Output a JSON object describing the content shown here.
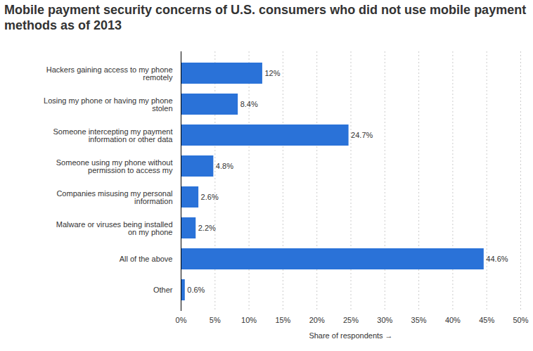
{
  "chart_data": {
    "type": "bar",
    "orientation": "horizontal",
    "title": "Mobile payment security concerns of U.S. consumers who did not use mobile payment methods as of 2013",
    "x_label": "Share of respondents",
    "categories": [
      "Hackers gaining access to my phone remotely",
      "Losing my phone or having my phone stolen",
      "Someone intercepting my payment information or other data",
      "Someone using my phone without permission to access my",
      "Companies misusing my personal information",
      "Malware or viruses being installed on my phone",
      "All of the above",
      "Other"
    ],
    "values": [
      12,
      8.4,
      24.7,
      4.8,
      2.6,
      2.2,
      44.6,
      0.6
    ],
    "value_labels": [
      "12%",
      "8.4%",
      "24.7%",
      "4.8%",
      "2.6%",
      "2.2%",
      "44.6%",
      "0.6%"
    ],
    "data_labels": true,
    "color": "#2a72d8",
    "xlim": [
      0,
      50
    ],
    "xticks": [
      {
        "value": 0,
        "label": "0%"
      },
      {
        "value": 5,
        "label": "5%"
      },
      {
        "value": 10,
        "label": "10%"
      },
      {
        "value": 15,
        "label": "15%"
      },
      {
        "value": 20,
        "label": "20%"
      },
      {
        "value": 25,
        "label": "25%"
      },
      {
        "value": 30,
        "label": "30%"
      },
      {
        "value": 35,
        "label": "35%"
      },
      {
        "value": 40,
        "label": "40%"
      },
      {
        "value": 45,
        "label": "45%"
      },
      {
        "value": 50,
        "label": "50%"
      }
    ],
    "grid": true
  }
}
